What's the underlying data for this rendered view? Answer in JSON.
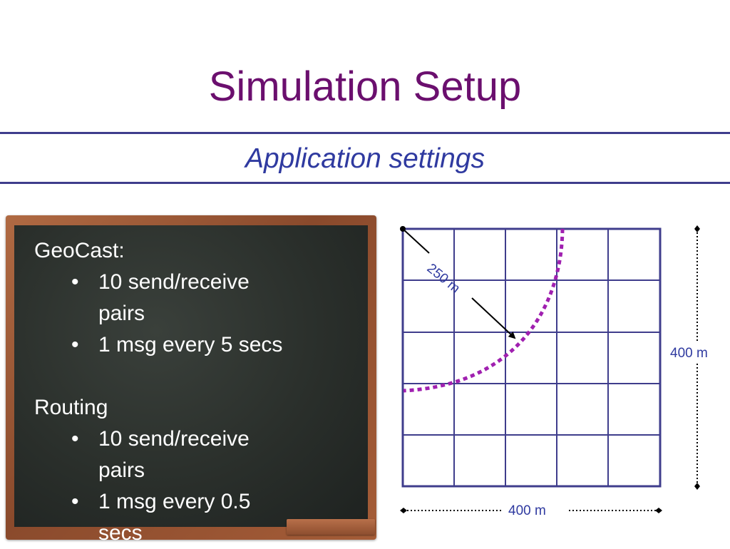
{
  "slide": {
    "title": "Simulation Setup",
    "subtitle": "Application settings"
  },
  "blackboard": {
    "geocast": {
      "heading": "GeoCast:",
      "bullets": [
        {
          "line1": "10 send/receive",
          "line2": "pairs"
        },
        {
          "line1": "1 msg every 5 secs"
        }
      ]
    },
    "routing": {
      "heading": "Routing",
      "bullets": [
        {
          "line1": "10 send/receive",
          "line2": "pairs"
        },
        {
          "line1": "1 msg every 0.5",
          "line2": "secs"
        }
      ]
    },
    "bullet_glyph": "•"
  },
  "diagram": {
    "grid_size": "5x5",
    "radius_label": "250 m",
    "width_label": "400 m",
    "height_label": "400 m",
    "colors": {
      "grid": "#3f3d8c",
      "arc": "#a020b0",
      "labels": "#2f3aa0"
    }
  }
}
